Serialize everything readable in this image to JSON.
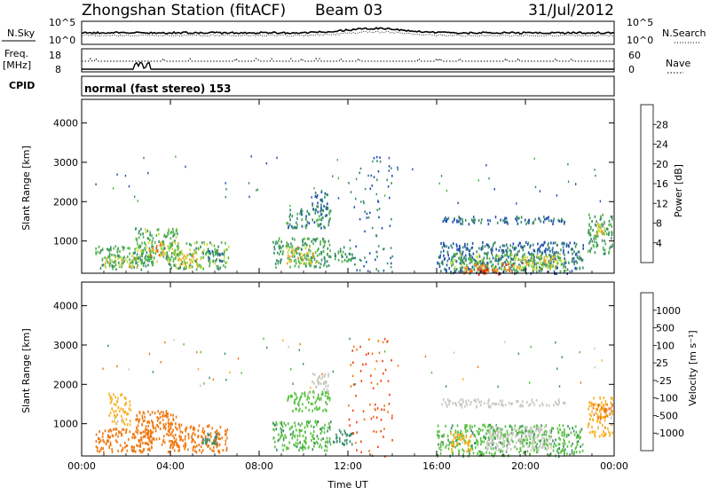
{
  "header": {
    "title": "Zhongshan Station (fitACF)",
    "beam": "Beam 03",
    "date": "31/Jul/2012"
  },
  "nsky_panel": {
    "left_label": "N.Sky",
    "right_label": "N.Search",
    "tick_top": "10^5",
    "tick_bottom": "10^0"
  },
  "freq_panel": {
    "left_label": "Freq.",
    "left_unit": "[MHz]",
    "left_tick_top": "18",
    "left_tick_bottom": "8",
    "right_label": "Nave",
    "right_tick_top": "60",
    "right_tick_bottom": "0"
  },
  "cpid": {
    "label": "CPID",
    "mode": "normal (fast stereo) 153"
  },
  "power_colorbar": {
    "label": "Power [dB]",
    "ticks": [
      "4",
      "8",
      "12",
      "16",
      "20",
      "24",
      "28"
    ],
    "colors": [
      "#0000ff",
      "#1f4fb0",
      "#3a8c6a",
      "#4fb54a",
      "#c8d83a",
      "#f0a020",
      "#f06010",
      "#e00000"
    ]
  },
  "velocity_colorbar": {
    "label": "Velocity [m s⁻¹]",
    "ticks": [
      "1000",
      "500",
      "100",
      "25",
      "-25",
      "-100",
      "-500",
      "-1000"
    ],
    "colors": [
      "#1c3fb8",
      "#2a70b0",
      "#3a8c6a",
      "#58c040",
      "#c8c8c0",
      "#f8b020",
      "#f07810",
      "#f04010",
      "#e00000"
    ]
  },
  "chart_data": [
    {
      "type": "heatmap",
      "title": "",
      "xlabel": "Time UT",
      "ylabel": "Slant Range [km]",
      "x_ticks": [
        "00:00",
        "04:00",
        "08:00",
        "12:00",
        "16:00",
        "20:00",
        "00:00"
      ],
      "y_ticks": [
        "1000",
        "2000",
        "3000",
        "4000"
      ],
      "xlim": [
        0,
        24
      ],
      "ylim": [
        180,
        4600
      ],
      "colorbar": "Power [dB]",
      "regions": [
        {
          "t0": 0.6,
          "t1": 3.2,
          "r0": 300,
          "r1": 900,
          "v": 12
        },
        {
          "t0": 1.0,
          "t1": 2.6,
          "r0": 350,
          "r1": 650,
          "v": 18
        },
        {
          "t0": 2.4,
          "t1": 4.4,
          "r0": 500,
          "r1": 1350,
          "v": 14
        },
        {
          "t0": 2.9,
          "t1": 3.7,
          "r0": 650,
          "r1": 1000,
          "v": 22
        },
        {
          "t0": 3.8,
          "t1": 6.6,
          "r0": 300,
          "r1": 1000,
          "v": 14
        },
        {
          "t0": 4.2,
          "t1": 5.4,
          "r0": 350,
          "r1": 700,
          "v": 20
        },
        {
          "t0": 5.6,
          "t1": 6.4,
          "r0": 500,
          "r1": 800,
          "v": 10
        },
        {
          "t0": 8.6,
          "t1": 11.2,
          "r0": 350,
          "r1": 1100,
          "v": 12
        },
        {
          "t0": 9.2,
          "t1": 10.6,
          "r0": 450,
          "r1": 900,
          "v": 18
        },
        {
          "t0": 9.2,
          "t1": 11.2,
          "r0": 1350,
          "r1": 1850,
          "v": 10
        },
        {
          "t0": 10.3,
          "t1": 11.1,
          "r0": 1800,
          "r1": 2300,
          "v": 8
        },
        {
          "t0": 11.3,
          "t1": 12.2,
          "r0": 500,
          "r1": 900,
          "v": 12
        },
        {
          "t0": 12.0,
          "t1": 14.0,
          "r0": 180,
          "r1": 3200,
          "v": 8
        },
        {
          "t0": 16.0,
          "t1": 22.6,
          "r0": 200,
          "r1": 1000,
          "v": 8
        },
        {
          "t0": 16.6,
          "t1": 21.8,
          "r0": 250,
          "r1": 700,
          "v": 14
        },
        {
          "t0": 17.2,
          "t1": 19.4,
          "r0": 200,
          "r1": 450,
          "v": 24
        },
        {
          "t0": 17.8,
          "t1": 18.8,
          "r0": 180,
          "r1": 350,
          "v": 28
        },
        {
          "t0": 19.5,
          "t1": 21.5,
          "r0": 300,
          "r1": 650,
          "v": 18
        },
        {
          "t0": 16.2,
          "t1": 21.8,
          "r0": 1450,
          "r1": 1650,
          "v": 8
        },
        {
          "t0": 22.8,
          "t1": 23.9,
          "r0": 700,
          "r1": 1700,
          "v": 12
        },
        {
          "t0": 23.2,
          "t1": 23.8,
          "r0": 1200,
          "r1": 1500,
          "v": 20
        }
      ]
    },
    {
      "type": "heatmap",
      "title": "",
      "xlabel": "Time UT",
      "ylabel": "Slant Range [km]",
      "x_ticks": [
        "00:00",
        "04:00",
        "08:00",
        "12:00",
        "16:00",
        "20:00",
        "00:00"
      ],
      "y_ticks": [
        "1000",
        "2000",
        "3000",
        "4000"
      ],
      "xlim": [
        0,
        24
      ],
      "ylim": [
        180,
        4600
      ],
      "colorbar": "Velocity [m s⁻¹]",
      "regions": [
        {
          "t0": 0.6,
          "t1": 3.2,
          "r0": 300,
          "r1": 900,
          "v": -200
        },
        {
          "t0": 1.2,
          "t1": 2.2,
          "r0": 1000,
          "r1": 1800,
          "v": -60
        },
        {
          "t0": 2.4,
          "t1": 4.4,
          "r0": 450,
          "r1": 1350,
          "v": -200
        },
        {
          "t0": 3.8,
          "t1": 6.6,
          "r0": 300,
          "r1": 1000,
          "v": -300
        },
        {
          "t0": 5.4,
          "t1": 6.2,
          "r0": 500,
          "r1": 850,
          "v": 300
        },
        {
          "t0": 8.6,
          "t1": 11.2,
          "r0": 350,
          "r1": 1100,
          "v": 80
        },
        {
          "t0": 9.2,
          "t1": 11.2,
          "r0": 1350,
          "r1": 1850,
          "v": 60
        },
        {
          "t0": 10.3,
          "t1": 11.1,
          "r0": 1800,
          "r1": 2300,
          "v": 0
        },
        {
          "t0": 11.3,
          "t1": 12.2,
          "r0": 500,
          "r1": 900,
          "v": 300
        },
        {
          "t0": 12.0,
          "t1": 14.0,
          "r0": 180,
          "r1": 3200,
          "v": -600
        },
        {
          "t0": 16.0,
          "t1": 22.6,
          "r0": 200,
          "r1": 1000,
          "v": 80
        },
        {
          "t0": 16.6,
          "t1": 17.6,
          "r0": 300,
          "r1": 800,
          "v": -60
        },
        {
          "t0": 18.2,
          "t1": 21.2,
          "r0": 350,
          "r1": 950,
          "v": 0
        },
        {
          "t0": 16.2,
          "t1": 21.8,
          "r0": 1450,
          "r1": 1650,
          "v": 0
        },
        {
          "t0": 22.8,
          "t1": 23.9,
          "r0": 700,
          "r1": 1700,
          "v": -60
        },
        {
          "t0": 23.0,
          "t1": 23.9,
          "r0": 1150,
          "r1": 1550,
          "v": -300
        }
      ]
    }
  ]
}
